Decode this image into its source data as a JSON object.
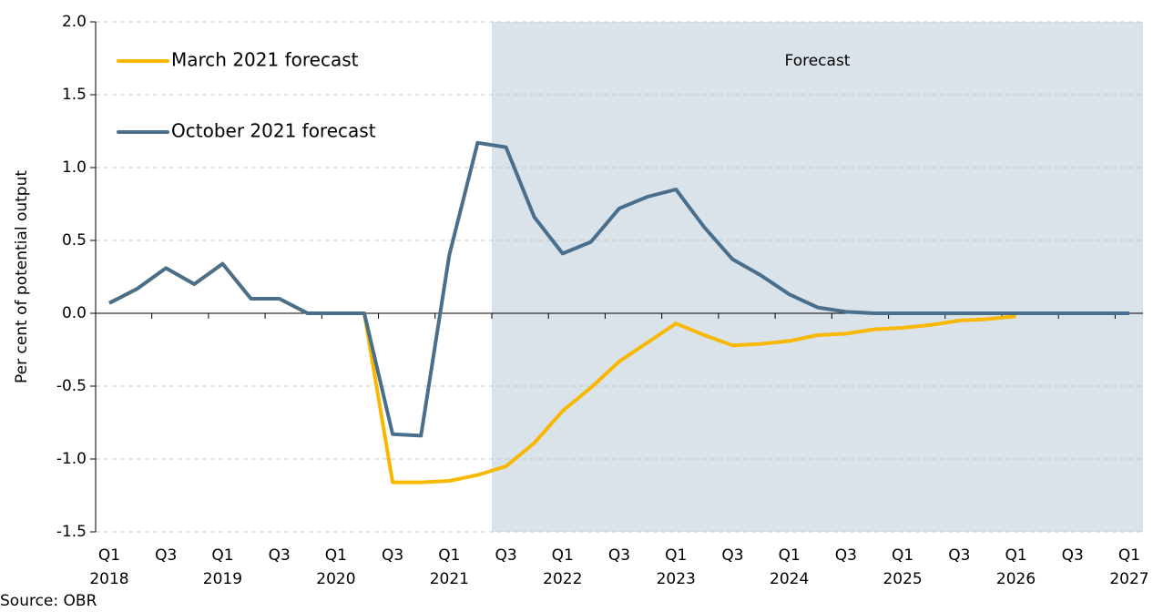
{
  "chart_data": {
    "type": "line",
    "y_label": "Per cent of potential output",
    "source": "Source: OBR",
    "forecast": {
      "label": "Forecast",
      "start_index": 14,
      "color": "#dae2ea"
    },
    "categories": [
      "Q1",
      null,
      "Q3",
      null,
      "Q1",
      null,
      "Q3",
      null,
      "Q1",
      null,
      "Q3",
      null,
      "Q1",
      null,
      "Q3",
      null,
      "Q1",
      null,
      "Q3",
      null,
      "Q1",
      null,
      "Q3",
      null,
      "Q1",
      null,
      "Q3",
      null,
      "Q1",
      null,
      "Q3",
      null,
      "Q1",
      null,
      "Q3",
      null,
      "Q1"
    ],
    "year_labels": [
      "2018",
      null,
      null,
      null,
      "2019",
      null,
      null,
      null,
      "2020",
      null,
      null,
      null,
      "2021",
      null,
      null,
      null,
      "2022",
      null,
      null,
      null,
      "2023",
      null,
      null,
      null,
      "2024",
      null,
      null,
      null,
      "2025",
      null,
      null,
      null,
      "2026",
      null,
      null,
      null,
      "2027"
    ],
    "series": [
      {
        "name": "March 2021 forecast",
        "color": "#f8b800",
        "values": [
          0.07,
          0.17,
          0.31,
          0.2,
          0.34,
          0.1,
          0.1,
          0.0,
          0.0,
          0.0,
          -1.16,
          -1.16,
          -1.15,
          -1.11,
          -1.05,
          -0.89,
          -0.67,
          -0.51,
          -0.33,
          -0.2,
          -0.07,
          -0.15,
          -0.22,
          -0.21,
          -0.19,
          -0.15,
          -0.14,
          -0.11,
          -0.1,
          -0.08,
          -0.05,
          -0.04,
          -0.02,
          null,
          null,
          null,
          null
        ]
      },
      {
        "name": "October 2021 forecast",
        "color": "#4a6f8c",
        "values": [
          0.07,
          0.17,
          0.31,
          0.2,
          0.34,
          0.1,
          0.1,
          0.0,
          0.0,
          0.0,
          -0.83,
          -0.84,
          0.4,
          1.17,
          1.14,
          0.66,
          0.41,
          0.49,
          0.72,
          0.8,
          0.85,
          0.59,
          0.37,
          0.26,
          0.13,
          0.04,
          0.01,
          0.0,
          0.0,
          0.0,
          0.0,
          0.0,
          0.0,
          0.0,
          0.0,
          0.0,
          0.0
        ]
      }
    ],
    "ylim": [
      -1.5,
      2.0
    ],
    "yticks": [
      -1.5,
      {
        "value": -1.0,
        "label": "-1.0"
      },
      -0.5,
      {
        "value": 0.0,
        "label": "0.0"
      },
      0.5,
      {
        "value": 1.0,
        "label": "1.0"
      },
      1.5,
      {
        "value": 2.0,
        "label": "2.0"
      }
    ],
    "grid": true,
    "legend": "top-left"
  }
}
